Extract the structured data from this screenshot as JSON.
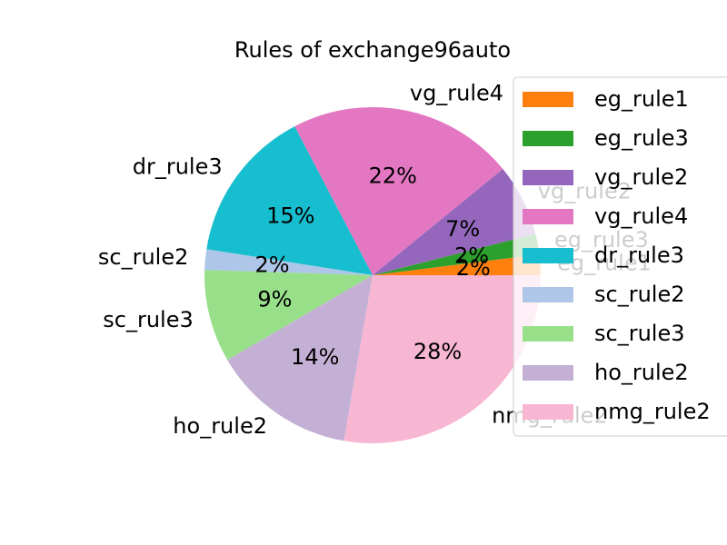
{
  "chart_data": {
    "type": "pie",
    "title": "Rules of exchange96auto",
    "slices": [
      {
        "label": "eg_rule1",
        "value": 2,
        "pct_label": "2%",
        "color": "#ff7f0e"
      },
      {
        "label": "eg_rule3",
        "value": 2,
        "pct_label": "2%",
        "color": "#2ca02c"
      },
      {
        "label": "vg_rule2",
        "value": 7,
        "pct_label": "7%",
        "color": "#9467bd"
      },
      {
        "label": "vg_rule4",
        "value": 22,
        "pct_label": "22%",
        "color": "#e377c2"
      },
      {
        "label": "dr_rule3",
        "value": 15,
        "pct_label": "15%",
        "color": "#17becf"
      },
      {
        "label": "sc_rule2",
        "value": 2,
        "pct_label": "2%",
        "color": "#aec7e8"
      },
      {
        "label": "sc_rule3",
        "value": 9,
        "pct_label": "9%",
        "color": "#98df8a"
      },
      {
        "label": "ho_rule2",
        "value": 14,
        "pct_label": "14%",
        "color": "#c5b0d5"
      },
      {
        "label": "nmg_rule2",
        "value": 28,
        "pct_label": "28%",
        "color": "#f7b6d2"
      }
    ],
    "legend_position": "right",
    "start_angle_deg": 0,
    "direction": "counterclockwise"
  }
}
